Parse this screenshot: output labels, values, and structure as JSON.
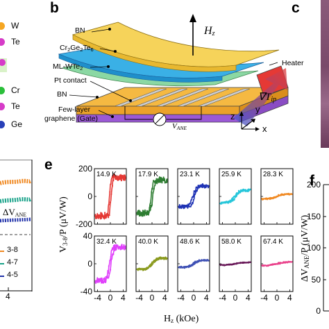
{
  "panels": {
    "b": "b",
    "c": "c",
    "e": "e",
    "f": "f"
  },
  "elements": [
    {
      "name": "W",
      "color": "#f5a623"
    },
    {
      "name": "Te",
      "color": "#d63cc8"
    },
    {
      "name": "Cr",
      "color": "#2bbf3a"
    },
    {
      "name": "Te",
      "color": "#d63cc8"
    },
    {
      "name": "Ge",
      "color": "#2940b8"
    }
  ],
  "schematic": {
    "labels": [
      "BN",
      "Cr2Ge2Te6",
      "ML-WTe2",
      "Pt contact",
      "BN",
      "Few-layer",
      "graphene (Gate)",
      "Heater"
    ],
    "hz": "H",
    "hz_sub": "z",
    "vane": "V",
    "vane_sub": "ANE",
    "grad": "∇T",
    "grad_sub": "ip",
    "axes": {
      "z": "z",
      "y": "y",
      "x": "x"
    }
  },
  "panel_d": {
    "delta_label": "ΔV",
    "delta_sub": "ANE",
    "legend": [
      "3-8",
      "4-7",
      "4-5"
    ],
    "legend_colors": [
      "#f08a24",
      "#1aa38a",
      "#2233aa"
    ],
    "tick_x": "4"
  },
  "panel_f": {
    "ylabel_main": "ΔV",
    "ylabel_sub": "ANE",
    "ylabel_rest": "/P (μV/W)",
    "yticks": [
      "200",
      "150",
      "100",
      "50",
      "0"
    ]
  },
  "chart_data": {
    "type": "line",
    "xlabel_main": "H",
    "xlabel_sub": "z",
    "xlabel_rest": " (kOe)",
    "ylabel_main": "V",
    "ylabel_sub": "3-8",
    "ylabel_rest": "/P (μV/W)",
    "xlim": [
      -5,
      5
    ],
    "xticks": [
      "-4",
      "0",
      "4"
    ],
    "row_ylims": [
      [
        -200,
        200
      ],
      [
        -40,
        40
      ]
    ],
    "row_yticks": [
      [
        "200",
        "0",
        "-200"
      ],
      [
        "40",
        "0",
        "-40"
      ]
    ],
    "series": [
      {
        "temperature": "14.9 K",
        "color": "#e53935",
        "amplitude": 140,
        "width": 0.5,
        "row": 0
      },
      {
        "temperature": "17.9 K",
        "color": "#2e7d32",
        "amplitude": 120,
        "width": 0.7,
        "row": 0
      },
      {
        "temperature": "23.1 K",
        "color": "#2034b5",
        "amplitude": 75,
        "width": 1.0,
        "row": 0
      },
      {
        "temperature": "25.9 K",
        "color": "#26c6da",
        "amplitude": 45,
        "width": 1.4,
        "row": 0
      },
      {
        "temperature": "28.3 K",
        "color": "#f08a24",
        "amplitude": 18,
        "width": 2.0,
        "row": 0
      },
      {
        "temperature": "32.4 K",
        "color": "#e040fb",
        "amplitude": 24,
        "width": 0.8,
        "row": 1
      },
      {
        "temperature": "40.0 K",
        "color": "#8a9a1e",
        "amplitude": 8,
        "width": 1.3,
        "row": 1
      },
      {
        "temperature": "48.6 K",
        "color": "#3f51b5",
        "amplitude": 5,
        "width": 1.5,
        "row": 1
      },
      {
        "temperature": "58.0 K",
        "color": "#6a1b5a",
        "amplitude": 2,
        "width": 2.5,
        "row": 1
      },
      {
        "temperature": "67.4 K",
        "color": "#e9408a",
        "amplitude": 3,
        "width": 3.0,
        "row": 1
      }
    ]
  }
}
